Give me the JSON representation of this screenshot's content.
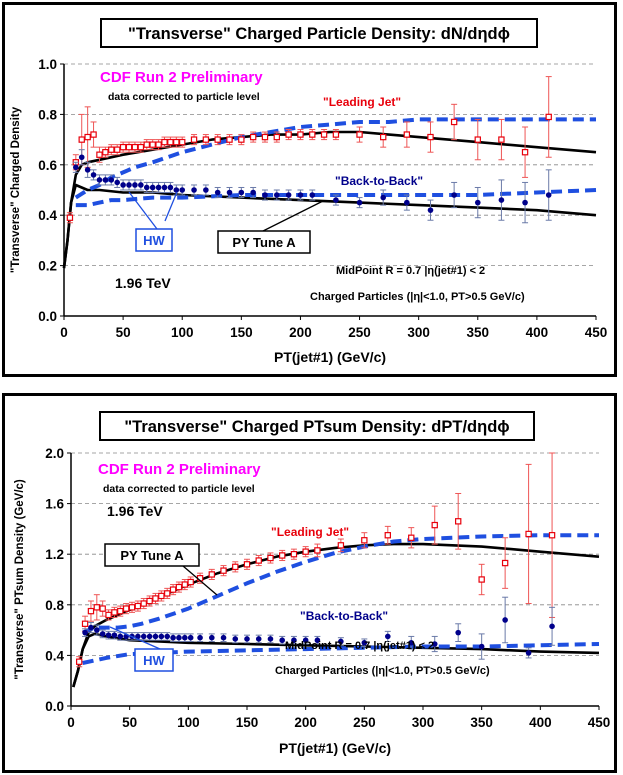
{
  "chart_data": [
    {
      "type": "line",
      "title": "\"Transverse\" Charged Particle Density: dN/dηdϕ",
      "xlabel": "PT(jet#1)  (GeV/c)",
      "ylabel": "\"Transverse\" Charged Density",
      "xlim": [
        0,
        450
      ],
      "ylim": [
        0,
        1.0
      ],
      "xticks": [
        "0",
        "50",
        "100",
        "150",
        "200",
        "250",
        "300",
        "350",
        "400",
        "450"
      ],
      "yticks": [
        "0.0",
        "0.2",
        "0.4",
        "0.6",
        "0.8",
        "1.0"
      ],
      "grid": "horizontal dashed",
      "annotations": {
        "cdf": "CDF Run 2 Preliminary",
        "corrected": "data corrected to particle level",
        "energy": "1.96 TeV",
        "midpoint": "MidPoint R = 0.7 |η(jet#1) < 2",
        "charged": "Charged Particles (|η|<1.0, PT>0.5 GeV/c)",
        "leading": "\"Leading Jet\"",
        "b2b": "\"Back-to-Back\"",
        "hw": "HW",
        "py": "PY Tune A"
      },
      "series": [
        {
          "name": "\"Leading Jet\"",
          "kind": "data",
          "marker": "open-square",
          "color": "#e8000b",
          "x": [
            5,
            10,
            15,
            20,
            25,
            30,
            35,
            40,
            45,
            50,
            55,
            60,
            65,
            70,
            75,
            80,
            85,
            90,
            95,
            100,
            110,
            120,
            130,
            140,
            150,
            160,
            170,
            180,
            190,
            200,
            210,
            220,
            230,
            250,
            270,
            290,
            310,
            330,
            350,
            370,
            390,
            410
          ],
          "y": [
            0.39,
            0.61,
            0.7,
            0.71,
            0.72,
            0.64,
            0.65,
            0.66,
            0.66,
            0.67,
            0.67,
            0.67,
            0.67,
            0.68,
            0.68,
            0.68,
            0.69,
            0.69,
            0.69,
            0.69,
            0.7,
            0.7,
            0.7,
            0.7,
            0.7,
            0.71,
            0.71,
            0.71,
            0.72,
            0.72,
            0.72,
            0.72,
            0.72,
            0.72,
            0.71,
            0.72,
            0.71,
            0.77,
            0.7,
            0.7,
            0.65,
            0.79
          ],
          "err": [
            0.02,
            0.03,
            0.1,
            0.12,
            0.05,
            0.03,
            0.02,
            0.02,
            0.02,
            0.02,
            0.02,
            0.02,
            0.02,
            0.02,
            0.02,
            0.02,
            0.02,
            0.02,
            0.02,
            0.02,
            0.02,
            0.02,
            0.02,
            0.02,
            0.02,
            0.02,
            0.02,
            0.02,
            0.02,
            0.02,
            0.02,
            0.02,
            0.02,
            0.03,
            0.04,
            0.05,
            0.06,
            0.07,
            0.08,
            0.08,
            0.1,
            0.16
          ]
        },
        {
          "name": "\"Back-to-Back\"",
          "kind": "data",
          "marker": "filled-circle",
          "color": "#00008b",
          "x": [
            10,
            15,
            20,
            25,
            30,
            35,
            40,
            45,
            50,
            55,
            60,
            65,
            70,
            75,
            80,
            85,
            90,
            95,
            100,
            110,
            120,
            130,
            140,
            150,
            160,
            170,
            180,
            190,
            200,
            210,
            230,
            250,
            270,
            290,
            310,
            330,
            350,
            370,
            390,
            410
          ],
          "y": [
            0.59,
            0.63,
            0.58,
            0.56,
            0.54,
            0.54,
            0.54,
            0.53,
            0.52,
            0.52,
            0.52,
            0.52,
            0.51,
            0.51,
            0.51,
            0.51,
            0.51,
            0.5,
            0.5,
            0.5,
            0.5,
            0.49,
            0.49,
            0.49,
            0.49,
            0.48,
            0.48,
            0.48,
            0.48,
            0.48,
            0.46,
            0.45,
            0.47,
            0.45,
            0.42,
            0.48,
            0.45,
            0.46,
            0.45,
            0.48
          ],
          "err": [
            0.02,
            0.03,
            0.03,
            0.02,
            0.02,
            0.02,
            0.02,
            0.02,
            0.02,
            0.02,
            0.02,
            0.02,
            0.02,
            0.02,
            0.02,
            0.02,
            0.02,
            0.02,
            0.02,
            0.02,
            0.02,
            0.02,
            0.02,
            0.02,
            0.02,
            0.02,
            0.02,
            0.02,
            0.02,
            0.02,
            0.02,
            0.02,
            0.03,
            0.03,
            0.04,
            0.05,
            0.06,
            0.08,
            0.08,
            0.1
          ]
        },
        {
          "name": "PY Tune A (Leading Jet)",
          "kind": "curve",
          "style": "solid",
          "color": "#000000",
          "x": [
            0,
            3,
            6,
            10,
            15,
            20,
            30,
            50,
            75,
            100,
            125,
            150,
            175,
            200,
            225,
            250,
            275,
            300,
            350,
            400,
            450
          ],
          "y": [
            0.19,
            0.3,
            0.45,
            0.56,
            0.6,
            0.61,
            0.62,
            0.64,
            0.66,
            0.68,
            0.7,
            0.71,
            0.72,
            0.72,
            0.73,
            0.73,
            0.72,
            0.71,
            0.69,
            0.67,
            0.65
          ]
        },
        {
          "name": "PY Tune A (Back-to-Back)",
          "kind": "curve",
          "style": "solid",
          "color": "#000000",
          "x": [
            0,
            3,
            6,
            10,
            15,
            20,
            30,
            50,
            75,
            100,
            150,
            200,
            250,
            300,
            350,
            400,
            450
          ],
          "y": [
            0.19,
            0.3,
            0.45,
            0.52,
            0.51,
            0.5,
            0.5,
            0.49,
            0.49,
            0.48,
            0.47,
            0.46,
            0.45,
            0.44,
            0.43,
            0.42,
            0.4
          ]
        },
        {
          "name": "HW (Leading Jet)",
          "kind": "curve",
          "style": "dashed",
          "color": "#1f4fe0",
          "x": [
            10,
            20,
            30,
            40,
            50,
            60,
            75,
            100,
            125,
            150,
            175,
            200,
            225,
            250,
            275,
            300,
            350,
            400,
            450
          ],
          "y": [
            0.47,
            0.5,
            0.52,
            0.55,
            0.57,
            0.59,
            0.61,
            0.65,
            0.68,
            0.71,
            0.73,
            0.75,
            0.76,
            0.77,
            0.77,
            0.78,
            0.78,
            0.78,
            0.78
          ]
        },
        {
          "name": "HW (Back-to-Back)",
          "kind": "curve",
          "style": "dashed",
          "color": "#1f4fe0",
          "x": [
            10,
            20,
            30,
            40,
            50,
            75,
            100,
            150,
            200,
            250,
            300,
            350,
            400,
            450
          ],
          "y": [
            0.44,
            0.44,
            0.45,
            0.46,
            0.46,
            0.47,
            0.47,
            0.48,
            0.48,
            0.48,
            0.48,
            0.48,
            0.49,
            0.5
          ]
        }
      ]
    },
    {
      "type": "line",
      "title": "\"Transverse\" Charged PTsum Density: dPT/dηdϕ",
      "xlabel": "PT(jet#1)  (GeV/c)",
      "ylabel": "\"Transverse\" PTsum Density (GeV/c)",
      "xlim": [
        0,
        450
      ],
      "ylim": [
        0,
        2.0
      ],
      "xticks": [
        "0",
        "50",
        "100",
        "150",
        "200",
        "250",
        "300",
        "350",
        "400",
        "450"
      ],
      "yticks": [
        "0.0",
        "0.4",
        "0.8",
        "1.2",
        "1.6",
        "2.0"
      ],
      "grid": "horizontal dashed",
      "annotations": {
        "cdf": "CDF Run 2 Preliminary",
        "corrected": "data corrected to particle level",
        "energy": "1.96 TeV",
        "midpoint": "MidPoint R = 0.7 |η(jet#1) < 2",
        "charged": "Charged Particles (|η|<1.0, PT>0.5 GeV/c)",
        "leading": "\"Leading Jet\"",
        "b2b": "\"Back-to-Back\"",
        "hw": "HW",
        "py": "PY Tune A"
      },
      "series": [
        {
          "name": "\"Leading Jet\"",
          "kind": "data",
          "marker": "open-square",
          "color": "#e8000b",
          "x": [
            7,
            12,
            17,
            22,
            27,
            32,
            37,
            42,
            47,
            52,
            57,
            62,
            67,
            72,
            77,
            82,
            87,
            92,
            97,
            102,
            110,
            120,
            130,
            140,
            150,
            160,
            170,
            180,
            190,
            200,
            210,
            230,
            250,
            270,
            290,
            310,
            330,
            350,
            370,
            390,
            410
          ],
          "y": [
            0.35,
            0.65,
            0.75,
            0.78,
            0.77,
            0.72,
            0.74,
            0.75,
            0.77,
            0.78,
            0.79,
            0.81,
            0.83,
            0.85,
            0.87,
            0.89,
            0.92,
            0.94,
            0.96,
            0.98,
            1.01,
            1.04,
            1.07,
            1.1,
            1.12,
            1.15,
            1.17,
            1.19,
            1.2,
            1.22,
            1.23,
            1.27,
            1.31,
            1.35,
            1.33,
            1.43,
            1.46,
            1.0,
            1.13,
            1.36,
            1.35
          ],
          "err": [
            0.04,
            0.06,
            0.08,
            0.1,
            0.06,
            0.04,
            0.04,
            0.04,
            0.04,
            0.04,
            0.04,
            0.04,
            0.04,
            0.04,
            0.04,
            0.04,
            0.04,
            0.04,
            0.04,
            0.04,
            0.04,
            0.04,
            0.04,
            0.04,
            0.04,
            0.04,
            0.04,
            0.04,
            0.04,
            0.04,
            0.05,
            0.05,
            0.06,
            0.07,
            0.08,
            0.15,
            0.22,
            0.12,
            0.2,
            0.55,
            0.65
          ]
        },
        {
          "name": "\"Back-to-Back\"",
          "kind": "data",
          "marker": "filled-circle",
          "color": "#00008b",
          "x": [
            12,
            17,
            22,
            27,
            32,
            37,
            42,
            47,
            52,
            57,
            62,
            67,
            72,
            77,
            82,
            87,
            92,
            97,
            102,
            110,
            120,
            130,
            140,
            150,
            160,
            170,
            180,
            190,
            200,
            210,
            230,
            250,
            270,
            290,
            310,
            330,
            350,
            370,
            390,
            410
          ],
          "y": [
            0.58,
            0.62,
            0.6,
            0.57,
            0.56,
            0.56,
            0.55,
            0.55,
            0.55,
            0.55,
            0.55,
            0.55,
            0.55,
            0.55,
            0.55,
            0.54,
            0.54,
            0.54,
            0.54,
            0.54,
            0.54,
            0.54,
            0.53,
            0.53,
            0.53,
            0.53,
            0.52,
            0.52,
            0.52,
            0.52,
            0.51,
            0.5,
            0.55,
            0.5,
            0.49,
            0.58,
            0.47,
            0.68,
            0.42,
            0.63
          ],
          "err": [
            0.03,
            0.04,
            0.04,
            0.03,
            0.03,
            0.03,
            0.03,
            0.03,
            0.03,
            0.03,
            0.03,
            0.03,
            0.03,
            0.03,
            0.03,
            0.03,
            0.03,
            0.03,
            0.03,
            0.03,
            0.03,
            0.03,
            0.03,
            0.03,
            0.03,
            0.03,
            0.03,
            0.03,
            0.03,
            0.03,
            0.03,
            0.03,
            0.04,
            0.05,
            0.06,
            0.07,
            0.1,
            0.18,
            0.04,
            0.15
          ]
        },
        {
          "name": "PY Tune A (Leading Jet)",
          "kind": "curve",
          "style": "solid",
          "color": "#000000",
          "x": [
            2,
            6,
            10,
            15,
            20,
            30,
            40,
            50,
            75,
            100,
            125,
            150,
            175,
            200,
            225,
            250,
            275,
            300,
            325,
            350,
            375,
            400,
            450
          ],
          "y": [
            0.15,
            0.28,
            0.45,
            0.58,
            0.63,
            0.68,
            0.72,
            0.76,
            0.86,
            0.96,
            1.05,
            1.12,
            1.18,
            1.22,
            1.25,
            1.27,
            1.28,
            1.28,
            1.27,
            1.26,
            1.24,
            1.22,
            1.18
          ]
        },
        {
          "name": "PY Tune A (Back-to-Back)",
          "kind": "curve",
          "style": "solid",
          "color": "#000000",
          "x": [
            2,
            6,
            10,
            15,
            20,
            30,
            50,
            75,
            100,
            150,
            200,
            250,
            300,
            350,
            400,
            450
          ],
          "y": [
            0.15,
            0.28,
            0.45,
            0.55,
            0.57,
            0.55,
            0.52,
            0.51,
            0.5,
            0.49,
            0.48,
            0.47,
            0.46,
            0.45,
            0.43,
            0.42
          ]
        },
        {
          "name": "HW (Leading Jet)",
          "kind": "curve",
          "style": "dashed",
          "color": "#1f4fe0",
          "x": [
            10,
            20,
            30,
            40,
            50,
            60,
            75,
            100,
            125,
            150,
            175,
            200,
            225,
            250,
            275,
            300,
            325,
            350,
            400,
            450
          ],
          "y": [
            0.58,
            0.62,
            0.62,
            0.62,
            0.63,
            0.65,
            0.69,
            0.77,
            0.87,
            0.97,
            1.06,
            1.14,
            1.21,
            1.26,
            1.3,
            1.32,
            1.33,
            1.34,
            1.35,
            1.35
          ]
        },
        {
          "name": "HW (Back-to-Back)",
          "kind": "curve",
          "style": "dashed",
          "color": "#1f4fe0",
          "x": [
            10,
            20,
            30,
            50,
            75,
            100,
            150,
            200,
            250,
            300,
            350,
            400,
            450
          ],
          "y": [
            0.34,
            0.36,
            0.38,
            0.41,
            0.42,
            0.43,
            0.44,
            0.45,
            0.46,
            0.47,
            0.47,
            0.48,
            0.49
          ]
        }
      ]
    }
  ]
}
